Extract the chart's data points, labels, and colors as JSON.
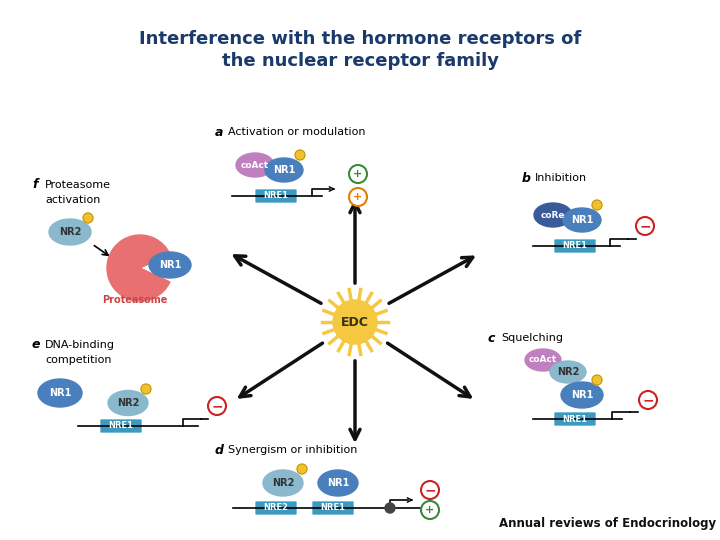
{
  "title_line1": "Interference with the hormone receptors of",
  "title_line2": "the nuclear receptor family",
  "title_color": "#1a3a6b",
  "footer": "Annual reviews of Endocrinology",
  "bg_color": "#ffffff",
  "edc_color": "#f5c842",
  "edc_text": "EDC",
  "nr1_color": "#4a7fbd",
  "nr2_color": "#8ab8cc",
  "coact_color": "#c080c0",
  "core_color": "#3a5a9a",
  "nre1_color": "#3a9abf",
  "nre2_color": "#3a9abf",
  "proteasome_color": "#e87070",
  "yellow_dot": "#f0c030",
  "plus_green": "#3a8a3a",
  "plus_orange": "#e08000",
  "minus_color": "#cc2222",
  "arrow_color": "#111111"
}
